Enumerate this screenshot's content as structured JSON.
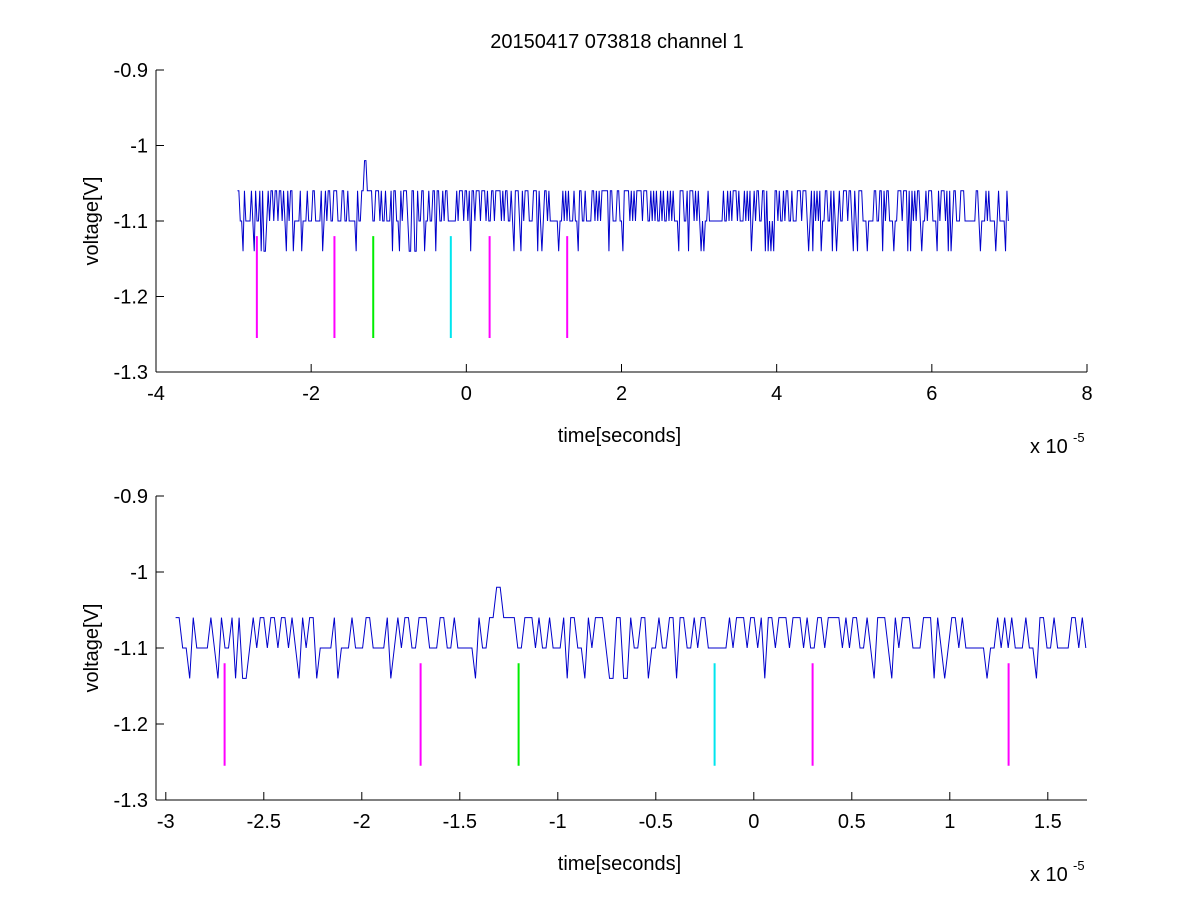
{
  "title": "20150417 073818 channel 1",
  "colors": {
    "signal": "#0000cc",
    "magenta": "#ff00ff",
    "green": "#00ee00",
    "cyan": "#00e5ee"
  },
  "chart_data": [
    {
      "type": "line",
      "title": "20150417 073818 channel 1",
      "xlabel": "time[seconds]",
      "ylabel": "voltage[V]",
      "x_multiplier": "x 10",
      "x_multiplier_exponent": "-5",
      "xlim": [
        -4,
        8
      ],
      "ylim": [
        -1.3,
        -0.9
      ],
      "y_reversed_display": true,
      "xticks": [
        -4,
        -2,
        0,
        2,
        4,
        6,
        8
      ],
      "xtick_labels": [
        "-4",
        "-2",
        "0",
        "2",
        "4",
        "6",
        "8"
      ],
      "yticks": [
        -0.9,
        -1,
        -1.1,
        -1.2,
        -1.3
      ],
      "ytick_labels": [
        "-0.9",
        "-1",
        "-1.1",
        "-1.2",
        "-1.3"
      ],
      "series": [
        {
          "x_range": [
            -2.95,
            7.0
          ],
          "baseline": -1.1,
          "high": -1.06,
          "low": -1.14,
          "spike": {
            "x": -1.3,
            "y": -1.02
          }
        }
      ],
      "markers": [
        {
          "x": -2.7,
          "y_top": -1.12,
          "y_bottom": -1.255,
          "color": "magenta"
        },
        {
          "x": -1.7,
          "y_top": -1.12,
          "y_bottom": -1.255,
          "color": "magenta"
        },
        {
          "x": -1.2,
          "y_top": -1.12,
          "y_bottom": -1.255,
          "color": "green"
        },
        {
          "x": -0.2,
          "y_top": -1.12,
          "y_bottom": -1.255,
          "color": "cyan"
        },
        {
          "x": 0.3,
          "y_top": -1.12,
          "y_bottom": -1.255,
          "color": "magenta"
        },
        {
          "x": 1.3,
          "y_top": -1.12,
          "y_bottom": -1.255,
          "color": "magenta"
        }
      ]
    },
    {
      "type": "line",
      "xlabel": "time[seconds]",
      "ylabel": "voltage[V]",
      "x_multiplier": "x 10",
      "x_multiplier_exponent": "-5",
      "xlim": [
        -3.05,
        1.7
      ],
      "ylim": [
        -1.3,
        -0.9
      ],
      "y_reversed_display": true,
      "xticks": [
        -3,
        -2.5,
        -2,
        -1.5,
        -1,
        -0.5,
        0,
        0.5,
        1,
        1.5
      ],
      "xtick_labels": [
        "-3",
        "-2.5",
        "-2",
        "-1.5",
        "-1",
        "-0.5",
        "0",
        "0.5",
        "1",
        "1.5"
      ],
      "yticks": [
        -0.9,
        -1,
        -1.1,
        -1.2,
        -1.3
      ],
      "ytick_labels": [
        "-0.9",
        "-1",
        "-1.1",
        "-1.2",
        "-1.3"
      ],
      "series": [
        {
          "x_range": [
            -2.95,
            1.7
          ],
          "baseline": -1.1,
          "high": -1.06,
          "low": -1.14,
          "spike": {
            "x": -1.3,
            "y": -1.02
          }
        }
      ],
      "markers": [
        {
          "x": -2.7,
          "y_top": -1.12,
          "y_bottom": -1.255,
          "color": "magenta"
        },
        {
          "x": -1.7,
          "y_top": -1.12,
          "y_bottom": -1.255,
          "color": "magenta"
        },
        {
          "x": -1.2,
          "y_top": -1.12,
          "y_bottom": -1.255,
          "color": "green"
        },
        {
          "x": -0.2,
          "y_top": -1.12,
          "y_bottom": -1.255,
          "color": "cyan"
        },
        {
          "x": 0.3,
          "y_top": -1.12,
          "y_bottom": -1.255,
          "color": "magenta"
        },
        {
          "x": 1.3,
          "y_top": -1.12,
          "y_bottom": -1.255,
          "color": "magenta"
        }
      ]
    }
  ]
}
